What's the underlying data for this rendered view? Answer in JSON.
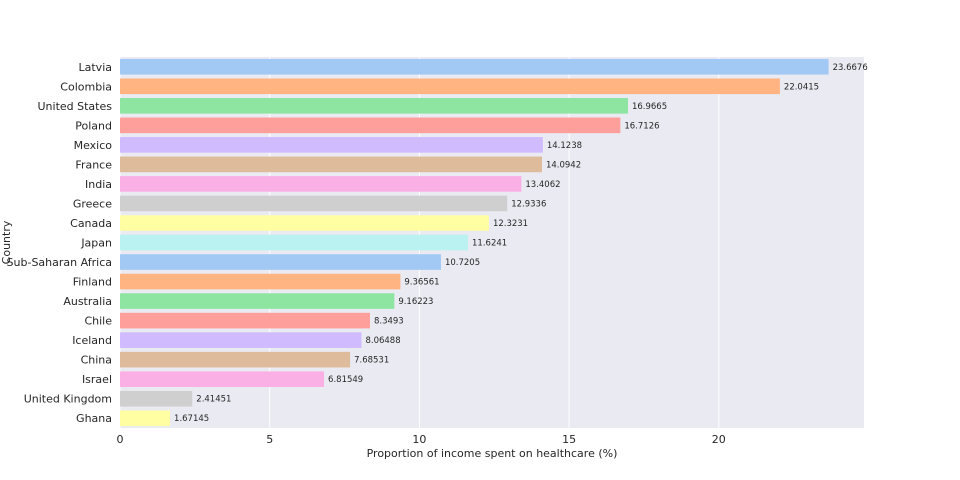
{
  "chart_data": {
    "type": "bar",
    "orientation": "horizontal",
    "title": "",
    "xlabel": "Proportion of income spent on healthcare (%)",
    "ylabel": "Country",
    "xlim": [
      0,
      24.85
    ],
    "xticks": [
      0,
      5,
      10,
      15,
      20
    ],
    "grid": true,
    "categories": [
      "Latvia",
      "Colombia",
      "United States",
      "Poland",
      "Mexico",
      "France",
      "India",
      "Greece",
      "Canada",
      "Japan",
      "Sub-Saharan Africa",
      "Finland",
      "Australia",
      "Chile",
      "Iceland",
      "China",
      "Israel",
      "United Kingdom",
      "Ghana"
    ],
    "values": [
      23.6676,
      22.0415,
      16.9665,
      16.7126,
      14.1238,
      14.0942,
      13.4062,
      12.9336,
      12.3231,
      11.6241,
      10.7205,
      9.36561,
      9.16223,
      8.3493,
      8.06488,
      7.68531,
      6.81549,
      2.41451,
      1.67145
    ],
    "value_labels": [
      "23.6676",
      "22.0415",
      "16.9665",
      "16.7126",
      "14.1238",
      "14.0942",
      "13.4062",
      "12.9336",
      "12.3231",
      "11.6241",
      "10.7205",
      "9.36561",
      "9.16223",
      "8.3493",
      "8.06488",
      "7.68531",
      "6.81549",
      "2.41451",
      "1.67145"
    ],
    "colors": [
      "#a1c9f4",
      "#ffb482",
      "#8de5a1",
      "#ff9f9b",
      "#d0bbff",
      "#debb9b",
      "#fab0e4",
      "#cfcfcf",
      "#fffea3",
      "#b9f2f0"
    ],
    "background": "#eaeaf2",
    "grid_color": "#ffffff"
  }
}
